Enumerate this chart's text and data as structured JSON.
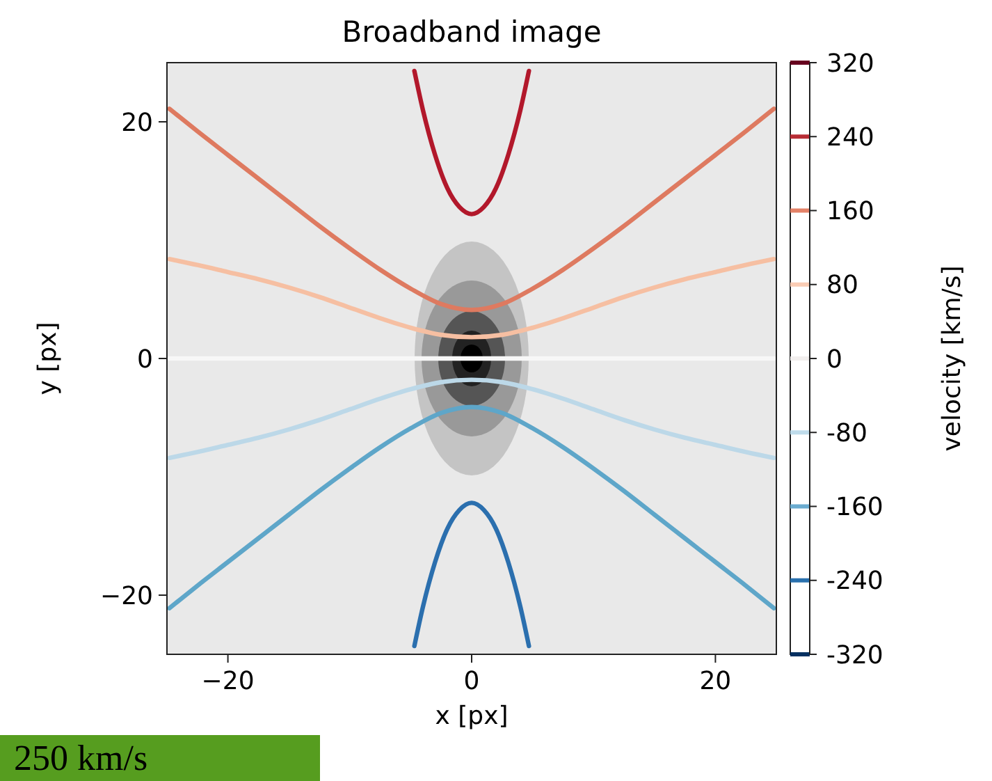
{
  "chart_data": {
    "type": "line",
    "title": "Broadband image",
    "xlabel": "x [px]",
    "ylabel": "y [px]",
    "y2label": "velocity [km/s]",
    "xlim": [
      -25,
      25
    ],
    "ylim": [
      -25,
      25
    ],
    "xticks": [
      {
        "value": -20,
        "label": "−20"
      },
      0,
      20
    ],
    "yticks": [
      {
        "value": -20,
        "label": "−20"
      },
      0,
      20
    ],
    "y2lim": [
      -320,
      320
    ],
    "y2ticks": [
      -320,
      -240,
      -160,
      -80,
      0,
      80,
      160,
      240,
      320
    ],
    "grid": false,
    "marker": "none",
    "line_style": "solid",
    "series": [
      {
        "color": "#b2182b",
        "x": [
          -4.7,
          -4,
          -3,
          -2,
          -1,
          0,
          1,
          2,
          3,
          4,
          4.7
        ],
        "values": [
          24.3,
          21,
          17.2,
          14.4,
          12.8,
          12.2,
          12.8,
          14.4,
          17.2,
          21,
          24.3
        ]
      },
      {
        "color": "#de7a60",
        "x": [
          -24.8,
          -22.5,
          -20,
          -17.5,
          -15,
          -12.5,
          -10,
          -7.5,
          -5,
          -2.5,
          0,
          2.5,
          5,
          7.5,
          10,
          12.5,
          15,
          17.5,
          20,
          22.5,
          24.8
        ],
        "values": [
          21.1,
          19.2,
          17.2,
          15.2,
          13.2,
          11.2,
          9.3,
          7.5,
          5.9,
          4.6,
          4.1,
          4.6,
          5.9,
          7.5,
          9.3,
          11.2,
          13.2,
          15.2,
          17.2,
          19.2,
          21.1
        ]
      },
      {
        "color": "#f6bfa2",
        "x": [
          -24.8,
          -22.5,
          -20,
          -17.5,
          -15,
          -12.5,
          -10,
          -7.5,
          -5,
          -2.5,
          0,
          2.5,
          5,
          7.5,
          10,
          12.5,
          15,
          17.5,
          20,
          22.5,
          24.8
        ],
        "values": [
          8.4,
          7.9,
          7.3,
          6.7,
          6,
          5.2,
          4.3,
          3.4,
          2.6,
          2,
          1.8,
          2,
          2.6,
          3.4,
          4.3,
          5.2,
          6,
          6.7,
          7.3,
          7.9,
          8.4
        ]
      },
      {
        "color": "#f7f7f7",
        "x": [
          -24.8,
          24.8
        ],
        "values": [
          0,
          0
        ]
      },
      {
        "color": "#bcd8e8",
        "x": [
          -24.8,
          -22.5,
          -20,
          -17.5,
          -15,
          -12.5,
          -10,
          -7.5,
          -5,
          -2.5,
          0,
          2.5,
          5,
          7.5,
          10,
          12.5,
          15,
          17.5,
          20,
          22.5,
          24.8
        ],
        "values": [
          -8.4,
          -7.9,
          -7.3,
          -6.7,
          -6,
          -5.2,
          -4.3,
          -3.4,
          -2.6,
          -2,
          -1.8,
          -2,
          -2.6,
          -3.4,
          -4.3,
          -5.2,
          -6,
          -6.7,
          -7.3,
          -7.9,
          -8.4
        ]
      },
      {
        "color": "#5ea6c9",
        "x": [
          -24.8,
          -22.5,
          -20,
          -17.5,
          -15,
          -12.5,
          -10,
          -7.5,
          -5,
          -2.5,
          0,
          2.5,
          5,
          7.5,
          10,
          12.5,
          15,
          17.5,
          20,
          22.5,
          24.8
        ],
        "values": [
          -21.1,
          -19.2,
          -17.2,
          -15.2,
          -13.2,
          -11.2,
          -9.3,
          -7.5,
          -5.9,
          -4.6,
          -4.1,
          -4.6,
          -5.9,
          -7.5,
          -9.3,
          -11.2,
          -13.2,
          -15.2,
          -17.2,
          -19.2,
          -21.1
        ]
      },
      {
        "color": "#2b6fae",
        "x": [
          -4.7,
          -4,
          -3,
          -2,
          -1,
          0,
          1,
          2,
          3,
          4,
          4.7
        ],
        "values": [
          -24.3,
          -21,
          -17.2,
          -14.4,
          -12.8,
          -12.2,
          -12.8,
          -14.4,
          -17.2,
          -21,
          -24.3
        ]
      }
    ],
    "annotations": [
      "250 km/s"
    ]
  }
}
